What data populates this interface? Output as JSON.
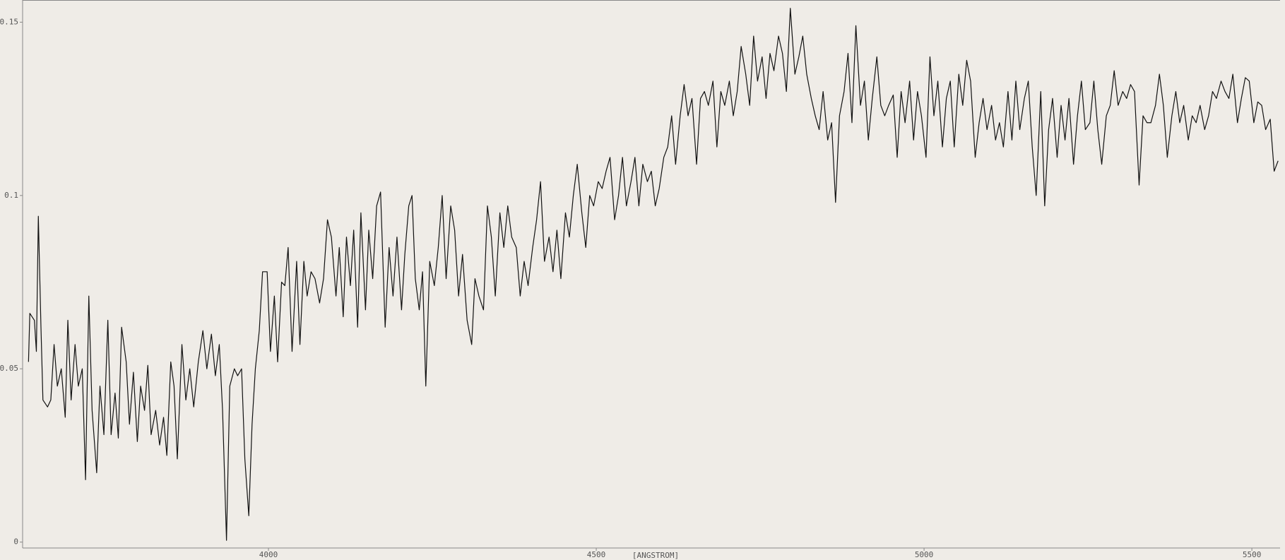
{
  "chart_data": {
    "type": "line",
    "x_label": "[ANGSTROM]",
    "color": "#111111",
    "xlim": [
      3625,
      5543
    ],
    "xticks": [
      4000,
      4500,
      5000,
      5500
    ],
    "ylim": [
      -0.0017,
      0.1564
    ],
    "yticks": [
      0,
      0.05,
      0.1,
      0.15
    ],
    "x": [
      3634,
      3636,
      3643,
      3646,
      3649,
      3653,
      3656,
      3663,
      3668,
      3673,
      3678,
      3684,
      3690,
      3694,
      3699,
      3705,
      3710,
      3716,
      3721,
      3726,
      3731,
      3738,
      3743,
      3749,
      3755,
      3760,
      3766,
      3771,
      3776,
      3783,
      3788,
      3794,
      3800,
      3805,
      3811,
      3816,
      3821,
      3828,
      3834,
      3840,
      3845,
      3851,
      3856,
      3861,
      3868,
      3874,
      3880,
      3886,
      3893,
      3900,
      3906,
      3913,
      3919,
      3925,
      3930,
      3936,
      3941,
      3948,
      3953,
      3959,
      3964,
      3970,
      3975,
      3980,
      3986,
      3991,
      3998,
      4003,
      4009,
      4014,
      4020,
      4025,
      4030,
      4036,
      4043,
      4048,
      4054,
      4059,
      4065,
      4071,
      4078,
      4084,
      4090,
      4096,
      4103,
      4108,
      4114,
      4119,
      4125,
      4130,
      4136,
      4141,
      4148,
      4153,
      4159,
      4165,
      4171,
      4178,
      4184,
      4190,
      4196,
      4203,
      4208,
      4214,
      4219,
      4224,
      4230,
      4235,
      4240,
      4246,
      4253,
      4259,
      4265,
      4271,
      4278,
      4284,
      4290,
      4296,
      4303,
      4310,
      4315,
      4321,
      4328,
      4334,
      4340,
      4346,
      4353,
      4359,
      4365,
      4371,
      4378,
      4384,
      4390,
      4396,
      4403,
      4409,
      4415,
      4421,
      4428,
      4434,
      4440,
      4446,
      4453,
      4459,
      4465,
      4471,
      4478,
      4484,
      4490,
      4496,
      4503,
      4509,
      4515,
      4521,
      4528,
      4534,
      4540,
      4546,
      4553,
      4559,
      4565,
      4571,
      4578,
      4584,
      4590,
      4596,
      4603,
      4609,
      4615,
      4621,
      4628,
      4634,
      4640,
      4646,
      4653,
      4659,
      4665,
      4671,
      4678,
      4684,
      4690,
      4696,
      4703,
      4709,
      4715,
      4721,
      4728,
      4734,
      4740,
      4746,
      4753,
      4759,
      4765,
      4771,
      4778,
      4784,
      4790,
      4796,
      4803,
      4809,
      4815,
      4821,
      4828,
      4834,
      4840,
      4846,
      4853,
      4859,
      4865,
      4871,
      4878,
      4884,
      4890,
      4896,
      4903,
      4909,
      4915,
      4921,
      4928,
      4934,
      4940,
      4946,
      4953,
      4959,
      4965,
      4971,
      4978,
      4984,
      4990,
      4996,
      5003,
      5009,
      5015,
      5021,
      5028,
      5034,
      5040,
      5046,
      5053,
      5059,
      5065,
      5071,
      5078,
      5084,
      5090,
      5096,
      5103,
      5109,
      5115,
      5121,
      5128,
      5134,
      5140,
      5146,
      5153,
      5159,
      5165,
      5171,
      5178,
      5184,
      5190,
      5196,
      5203,
      5209,
      5215,
      5221,
      5228,
      5234,
      5240,
      5246,
      5253,
      5259,
      5265,
      5271,
      5278,
      5284,
      5290,
      5296,
      5303,
      5309,
      5315,
      5321,
      5328,
      5334,
      5340,
      5346,
      5353,
      5359,
      5365,
      5371,
      5378,
      5384,
      5390,
      5396,
      5403,
      5409,
      5415,
      5421,
      5428,
      5434,
      5440,
      5446,
      5453,
      5459,
      5465,
      5471,
      5478,
      5484,
      5490,
      5496,
      5503,
      5509,
      5515,
      5521,
      5528,
      5534,
      5540
    ],
    "values": [
      0.052,
      0.066,
      0.064,
      0.055,
      0.094,
      0.062,
      0.041,
      0.039,
      0.041,
      0.057,
      0.045,
      0.05,
      0.036,
      0.064,
      0.041,
      0.057,
      0.045,
      0.05,
      0.018,
      0.071,
      0.038,
      0.02,
      0.045,
      0.031,
      0.064,
      0.031,
      0.043,
      0.03,
      0.062,
      0.052,
      0.034,
      0.049,
      0.029,
      0.045,
      0.038,
      0.051,
      0.031,
      0.038,
      0.028,
      0.036,
      0.025,
      0.052,
      0.045,
      0.024,
      0.057,
      0.041,
      0.05,
      0.039,
      0.052,
      0.061,
      0.05,
      0.06,
      0.048,
      0.057,
      0.038,
      0.0005,
      0.045,
      0.05,
      0.048,
      0.05,
      0.024,
      0.0076,
      0.034,
      0.05,
      0.061,
      0.078,
      0.078,
      0.055,
      0.071,
      0.052,
      0.075,
      0.074,
      0.085,
      0.055,
      0.081,
      0.057,
      0.081,
      0.071,
      0.078,
      0.076,
      0.069,
      0.076,
      0.093,
      0.088,
      0.071,
      0.085,
      0.065,
      0.088,
      0.074,
      0.09,
      0.062,
      0.095,
      0.067,
      0.09,
      0.076,
      0.097,
      0.101,
      0.062,
      0.085,
      0.071,
      0.088,
      0.067,
      0.083,
      0.097,
      0.1,
      0.076,
      0.067,
      0.078,
      0.045,
      0.081,
      0.074,
      0.085,
      0.1,
      0.076,
      0.097,
      0.09,
      0.071,
      0.083,
      0.064,
      0.057,
      0.076,
      0.071,
      0.067,
      0.097,
      0.088,
      0.071,
      0.095,
      0.085,
      0.097,
      0.088,
      0.085,
      0.071,
      0.081,
      0.074,
      0.085,
      0.093,
      0.104,
      0.081,
      0.088,
      0.078,
      0.09,
      0.076,
      0.095,
      0.088,
      0.1,
      0.109,
      0.095,
      0.085,
      0.1,
      0.097,
      0.104,
      0.102,
      0.107,
      0.111,
      0.093,
      0.1,
      0.111,
      0.097,
      0.104,
      0.111,
      0.097,
      0.109,
      0.104,
      0.107,
      0.097,
      0.102,
      0.111,
      0.114,
      0.123,
      0.109,
      0.123,
      0.132,
      0.123,
      0.128,
      0.109,
      0.128,
      0.13,
      0.126,
      0.133,
      0.114,
      0.13,
      0.126,
      0.133,
      0.123,
      0.13,
      0.143,
      0.135,
      0.126,
      0.146,
      0.133,
      0.14,
      0.128,
      0.141,
      0.136,
      0.146,
      0.141,
      0.13,
      0.154,
      0.135,
      0.14,
      0.146,
      0.135,
      0.128,
      0.123,
      0.119,
      0.13,
      0.116,
      0.121,
      0.098,
      0.123,
      0.13,
      0.141,
      0.121,
      0.149,
      0.126,
      0.133,
      0.116,
      0.128,
      0.14,
      0.126,
      0.123,
      0.126,
      0.129,
      0.111,
      0.13,
      0.121,
      0.133,
      0.116,
      0.13,
      0.123,
      0.111,
      0.14,
      0.123,
      0.133,
      0.114,
      0.128,
      0.133,
      0.114,
      0.135,
      0.126,
      0.139,
      0.133,
      0.111,
      0.121,
      0.128,
      0.119,
      0.126,
      0.116,
      0.121,
      0.114,
      0.13,
      0.116,
      0.133,
      0.119,
      0.128,
      0.133,
      0.114,
      0.1,
      0.13,
      0.097,
      0.119,
      0.128,
      0.111,
      0.126,
      0.116,
      0.128,
      0.109,
      0.123,
      0.133,
      0.119,
      0.121,
      0.133,
      0.119,
      0.109,
      0.123,
      0.126,
      0.136,
      0.126,
      0.13,
      0.128,
      0.132,
      0.13,
      0.103,
      0.123,
      0.121,
      0.121,
      0.126,
      0.135,
      0.126,
      0.111,
      0.123,
      0.13,
      0.121,
      0.126,
      0.116,
      0.123,
      0.121,
      0.126,
      0.119,
      0.123,
      0.13,
      0.128,
      0.133,
      0.13,
      0.128,
      0.135,
      0.121,
      0.128,
      0.134,
      0.133,
      0.121,
      0.127,
      0.126,
      0.119,
      0.122,
      0.107,
      0.11
    ]
  }
}
